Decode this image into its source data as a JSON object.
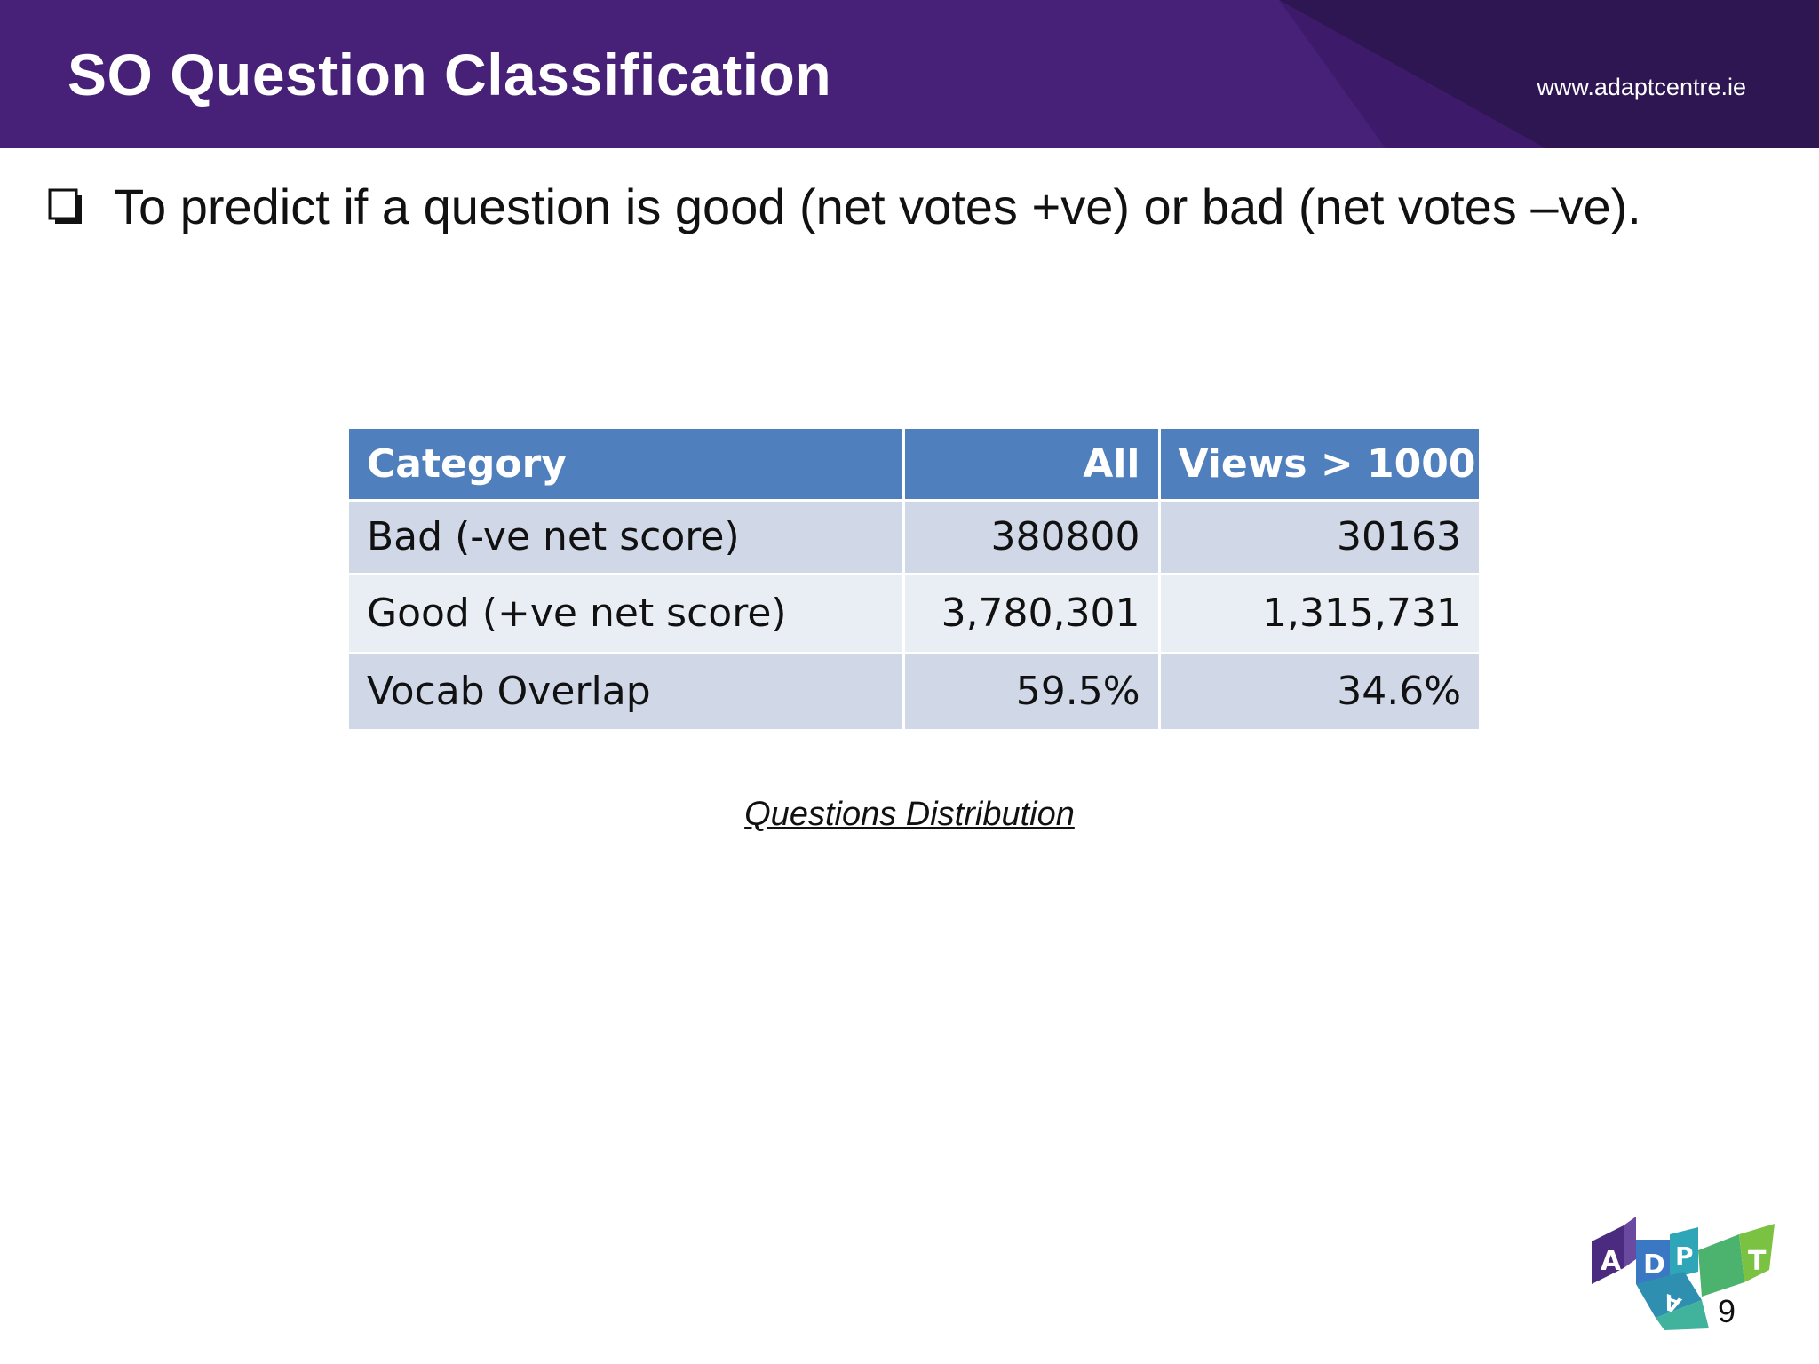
{
  "header": {
    "title": "SO Question Classification",
    "url": "www.adaptcentre.ie",
    "colors": {
      "primary": "#472077",
      "dark": "#2e1652"
    }
  },
  "bullet": {
    "icon": "checkbox-bullet-icon",
    "text": "To predict if a question is good (net votes +ve) or bad (net votes –ve)."
  },
  "table": {
    "headers": [
      "Category",
      "All",
      "Views > 1000"
    ],
    "rows": [
      [
        "Bad (-ve net score)",
        "380800",
        "30163"
      ],
      [
        "Good (+ve net score)",
        "3,780,301",
        "1,315,731"
      ],
      [
        "Vocab Overlap",
        "59.5%",
        "34.6%"
      ]
    ],
    "colors": {
      "header": "#4f80bd",
      "row_odd": "#d0d8e8",
      "row_even": "#e9edf4"
    }
  },
  "caption": "Questions Distribution",
  "logo": {
    "letters": [
      "A",
      "D",
      "P",
      "A",
      "T"
    ],
    "colors": [
      "#4a2b80",
      "#3b78c4",
      "#2fa5b8",
      "#4bb36e",
      "#7cc242"
    ]
  },
  "page_number": "9"
}
